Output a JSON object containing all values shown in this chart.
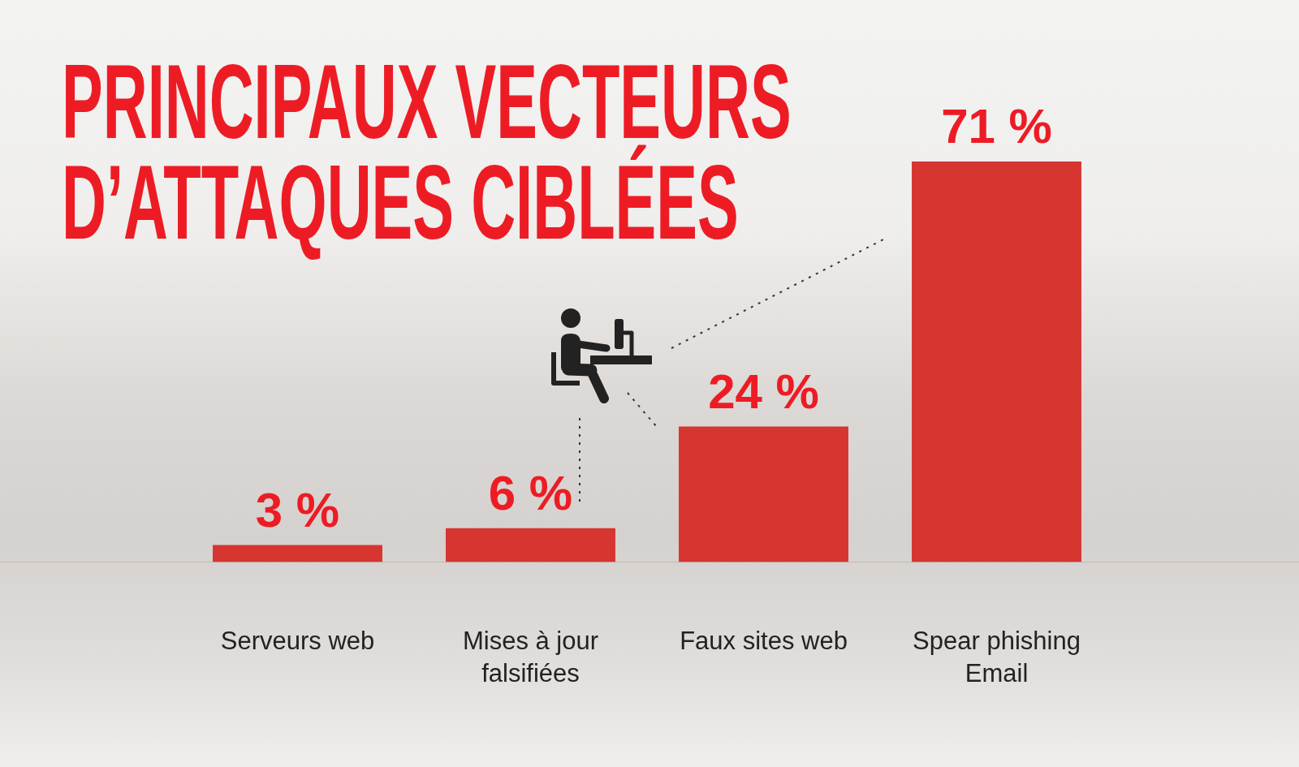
{
  "chart_data": {
    "type": "bar",
    "title": "PRINCIPAUX VECTEURS D’ATTAQUES CIBLÉES",
    "categories": [
      "Serveurs web",
      "Mises à jour falsifiées",
      "Faux sites web",
      "Spear phishing Email"
    ],
    "values": [
      3,
      6,
      24,
      71
    ],
    "color": "#d63530",
    "value_labels": [
      "3 %",
      "6 %",
      "24 %",
      "71 %"
    ]
  }
}
